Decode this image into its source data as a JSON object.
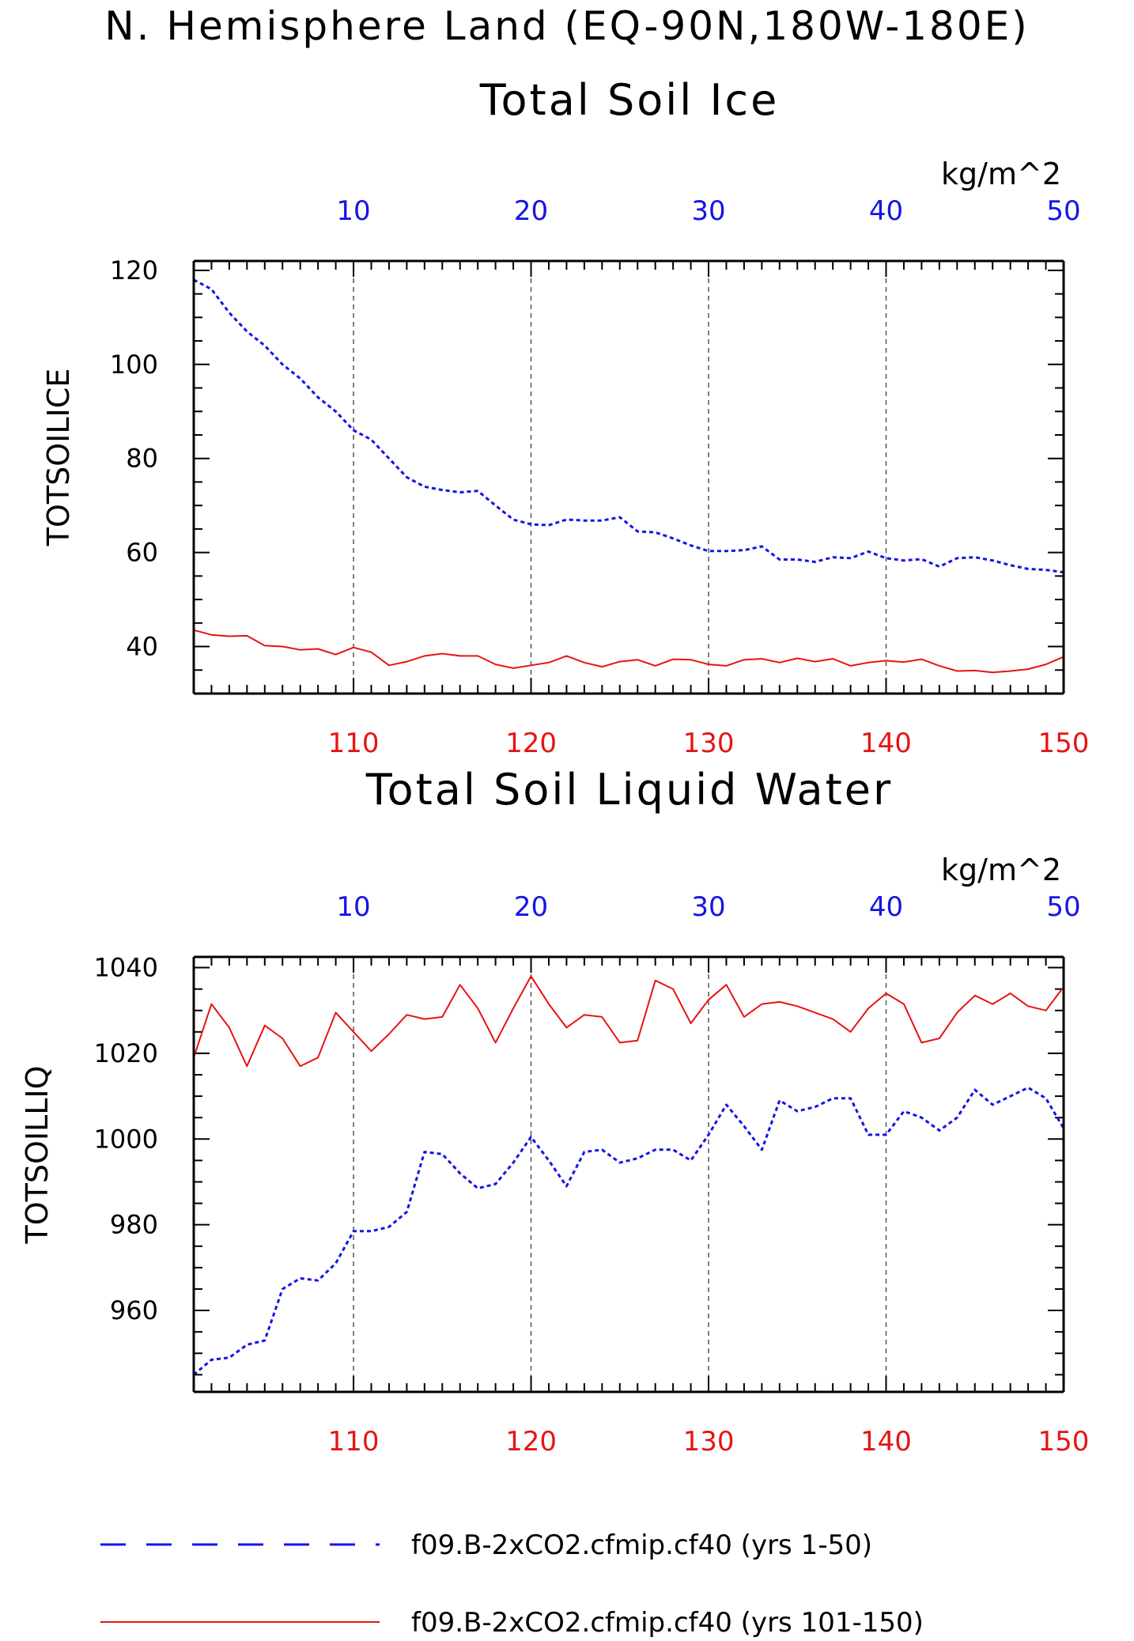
{
  "figure_title": "N. Hemisphere Land (EQ-90N,180W-180E)",
  "colors": {
    "series_a": "#1414e6",
    "series_b": "#e61414",
    "axis": "#000000",
    "grid": "#555555"
  },
  "legend": {
    "entries": [
      {
        "label": "f09.B-2xCO2.cfmip.cf40 (yrs 1-50)",
        "color": "#1414e6",
        "style": "dashed"
      },
      {
        "label": "f09.B-2xCO2.cfmip.cf40 (yrs 101-150)",
        "color": "#e61414",
        "style": "solid"
      }
    ]
  },
  "chart_data": [
    {
      "type": "line",
      "title": "Total Soil Ice",
      "units": "kg/m^2",
      "ylabel": "TOTSOILICE",
      "ylim": [
        30,
        122
      ],
      "yticks": [
        40,
        60,
        80,
        100,
        120
      ],
      "x_top": {
        "range": [
          1,
          50
        ],
        "ticks": [
          10,
          20,
          30,
          40,
          50
        ]
      },
      "x_bottom": {
        "range": [
          101,
          150
        ],
        "ticks": [
          110,
          120,
          130,
          140,
          150
        ]
      },
      "grid": "vertical dashed at major ticks",
      "series": [
        {
          "x_axis": "top",
          "style": "dashed",
          "color": "#1414e6",
          "values": [
            118,
            116,
            111,
            107,
            104,
            100,
            97,
            93,
            90,
            86,
            84,
            80,
            76,
            74,
            73.3,
            72.8,
            73.1,
            70,
            67,
            66,
            65.8,
            67,
            66.8,
            66.8,
            67.5,
            64.5,
            64.3,
            63,
            61.5,
            60.3,
            60.3,
            60.5,
            61.3,
            58.5,
            58.5,
            58,
            59,
            58.8,
            60.2,
            58.8,
            58.3,
            58.6,
            57,
            58.8,
            59,
            58.3,
            57.3,
            56.5,
            56.3,
            55.8
          ]
        },
        {
          "x_axis": "bottom",
          "style": "solid",
          "color": "#e61414",
          "values": [
            43.5,
            42.5,
            42.2,
            42.3,
            40.2,
            40,
            39.3,
            39.5,
            38.3,
            39.8,
            38.8,
            36,
            36.8,
            38,
            38.5,
            38,
            38,
            36.2,
            35.4,
            36,
            36.6,
            38,
            36.6,
            35.7,
            36.8,
            37.2,
            35.9,
            37.3,
            37.2,
            36.2,
            35.9,
            37.2,
            37.4,
            36.6,
            37.5,
            36.8,
            37.4,
            35.9,
            36.6,
            37,
            36.7,
            37.3,
            35.9,
            34.8,
            34.9,
            34.5,
            34.8,
            35.2,
            36.2,
            37.8
          ]
        }
      ]
    },
    {
      "type": "line",
      "title": "Total Soil Liquid Water",
      "units": "kg/m^2",
      "ylabel": "TOTSOILLIQ",
      "ylim": [
        941,
        1042.5
      ],
      "yticks": [
        960,
        980,
        1000,
        1020,
        1040
      ],
      "x_top": {
        "range": [
          1,
          50
        ],
        "ticks": [
          10,
          20,
          30,
          40,
          50
        ]
      },
      "x_bottom": {
        "range": [
          101,
          150
        ],
        "ticks": [
          110,
          120,
          130,
          140,
          150
        ]
      },
      "grid": "vertical dashed at major ticks",
      "series": [
        {
          "x_axis": "top",
          "style": "dashed",
          "color": "#1414e6",
          "values": [
            945,
            948.5,
            949,
            952,
            953,
            965,
            967.5,
            967,
            971,
            978.5,
            978.5,
            979.5,
            983,
            997,
            996.5,
            992,
            988.5,
            989.5,
            994.5,
            1000.5,
            995,
            989,
            997,
            997.5,
            994.5,
            995.5,
            997.5,
            997.5,
            995,
            1001,
            1008,
            1003,
            997.5,
            1009,
            1006.5,
            1007.5,
            1009.5,
            1009.5,
            1001,
            1001,
            1006.5,
            1005,
            1002,
            1005,
            1011.5,
            1008,
            1010,
            1012,
            1009.5,
            1002.5
          ]
        },
        {
          "x_axis": "bottom",
          "style": "solid",
          "color": "#e61414",
          "values": [
            1019,
            1031.5,
            1026,
            1017,
            1026.5,
            1023.5,
            1017,
            1019,
            1029.5,
            1025,
            1020.5,
            1024.5,
            1029,
            1028,
            1028.5,
            1036,
            1030.5,
            1022.5,
            1030.5,
            1038,
            1031.5,
            1026,
            1029,
            1028.5,
            1022.5,
            1023,
            1037,
            1035,
            1027,
            1032.5,
            1036,
            1028.5,
            1031.5,
            1032,
            1031,
            1029.5,
            1028,
            1025,
            1030.5,
            1034,
            1031.5,
            1022.5,
            1023.5,
            1029.5,
            1033.5,
            1031.5,
            1034,
            1031,
            1030,
            1035.5
          ]
        }
      ]
    }
  ]
}
